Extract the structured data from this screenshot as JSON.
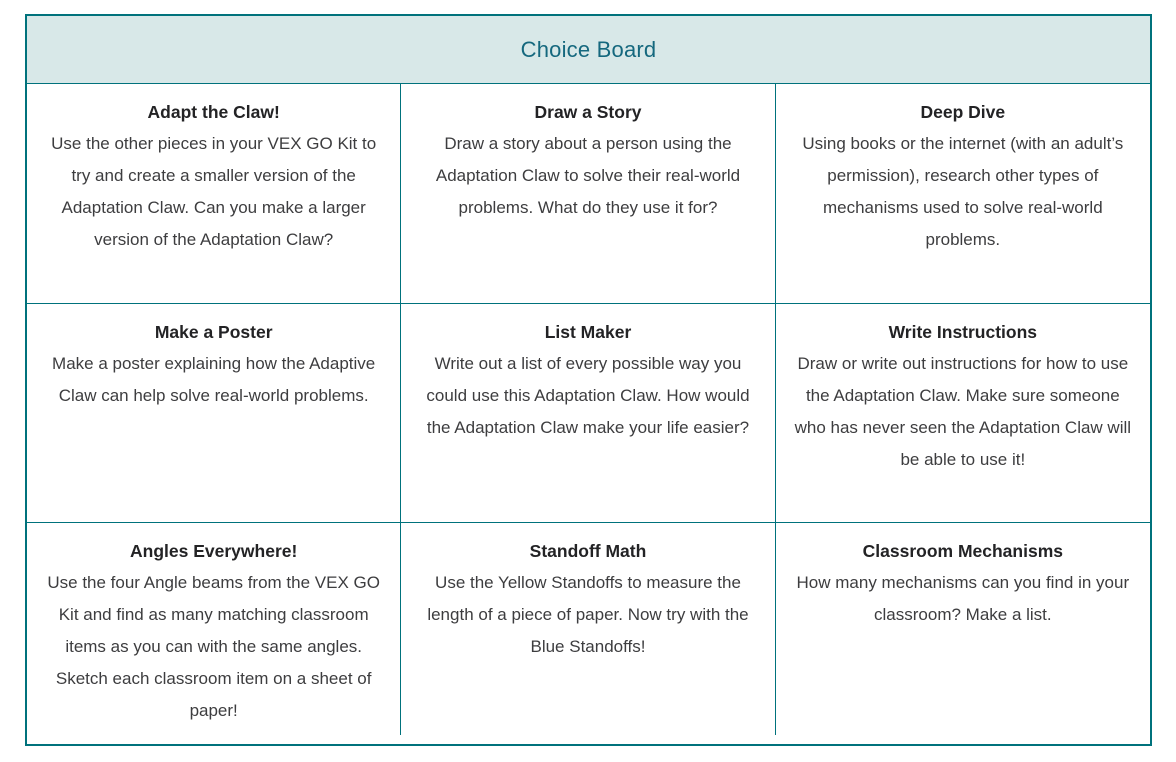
{
  "board": {
    "title": "Choice Board",
    "colors": {
      "border": "#00727c",
      "header_background": "#d8e8e8",
      "header_text": "#15687e",
      "card_title_text": "#232325",
      "card_body_text": "#3d3d3f"
    },
    "cells": [
      {
        "title": "Adapt the Claw!",
        "text": "Use the other pieces in your VEX GO Kit to try and create a smaller version of the Adaptation Claw. Can you make a larger version of the Adaptation Claw?"
      },
      {
        "title": "Draw a Story",
        "text": "Draw a story about a person using the Adaptation Claw to solve their real-world problems. What do they use it for?"
      },
      {
        "title": "Deep Dive",
        "text": "Using books or the internet (with an adult’s permission), research other types of mechanisms used to solve real-world problems."
      },
      {
        "title": "Make a Poster",
        "text": "Make a poster explaining how the Adaptive Claw can help solve real-world problems."
      },
      {
        "title": "List Maker",
        "text": "Write out a list of every possible way you could use this Adaptation Claw. How would the Adaptation Claw make your life easier?"
      },
      {
        "title": "Write Instructions",
        "text": "Draw or write out instructions for how to use the Adaptation Claw. Make sure someone who has never seen the Adaptation Claw will be able to use it!"
      },
      {
        "title": "Angles Everywhere!",
        "text": "Use the four Angle beams from the VEX GO Kit and find as many matching classroom items as you can with the same angles. Sketch each classroom item on a sheet of paper!"
      },
      {
        "title": "Standoff Math",
        "text": "Use the Yellow Standoffs to measure the length of a piece of paper. Now try with the Blue Standoffs!"
      },
      {
        "title": "Classroom Mechanisms",
        "text": "How many mechanisms can you find in your classroom? Make a list."
      }
    ]
  }
}
